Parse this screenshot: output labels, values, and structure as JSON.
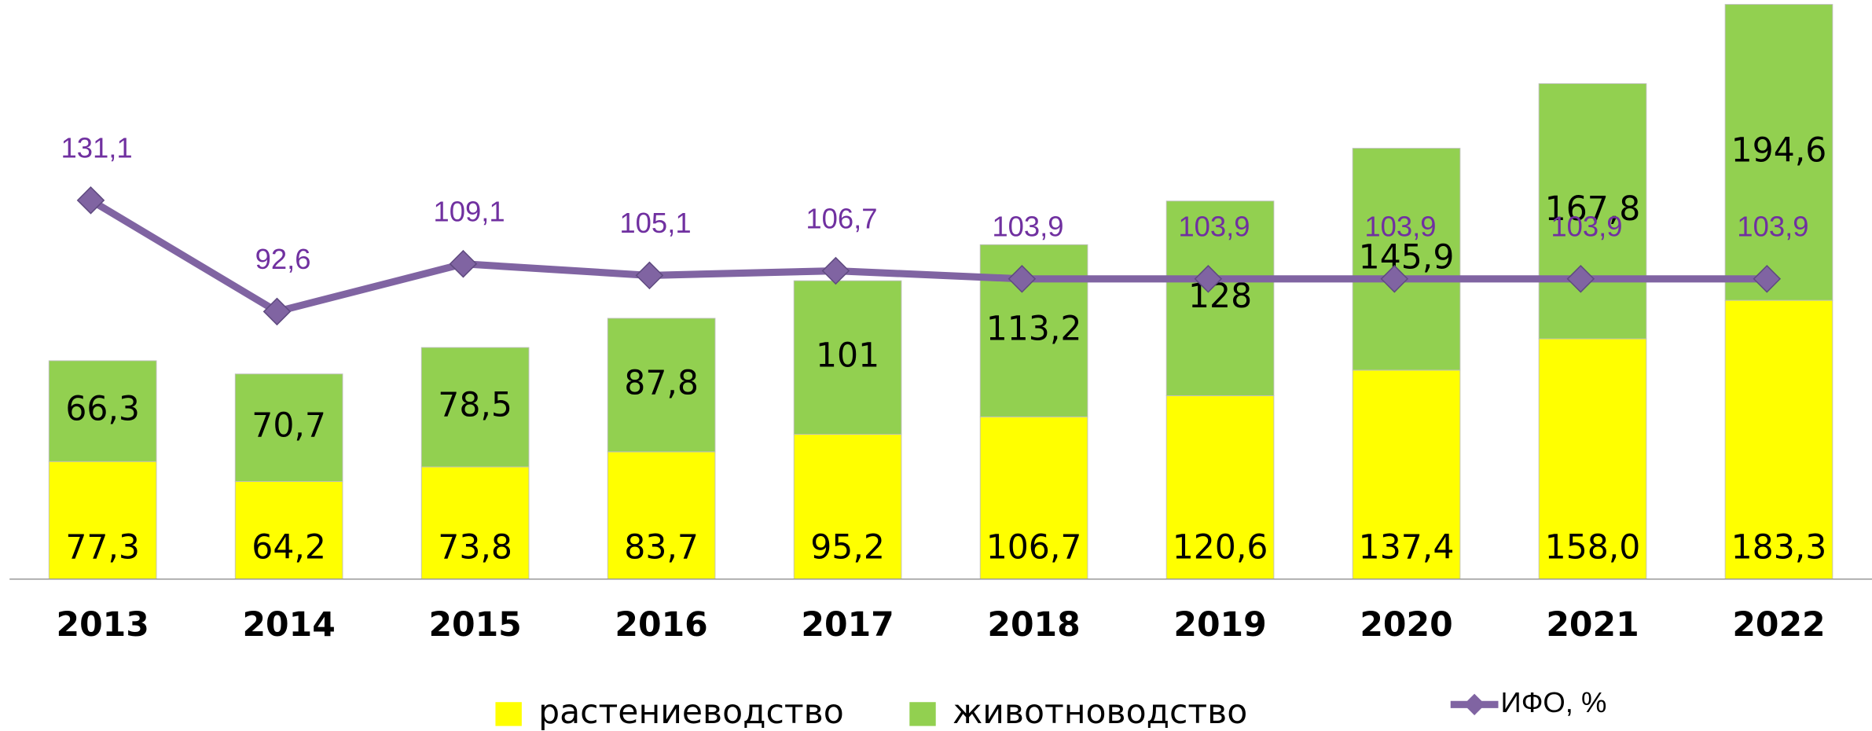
{
  "chart_data": {
    "type": "bar",
    "categories": [
      "2013",
      "2014",
      "2015",
      "2016",
      "2017",
      "2018",
      "2019",
      "2020",
      "2021",
      "2022"
    ],
    "stacked": true,
    "ylim": [
      0,
      380
    ],
    "y2lim": [
      0,
      200
    ],
    "series": [
      {
        "name": "растениеводство",
        "color": "#ffff00",
        "values": [
          77.3,
          64.2,
          73.8,
          83.7,
          95.2,
          106.7,
          120.6,
          137.4,
          158.0,
          183.3
        ],
        "value_labels": [
          "77,3",
          "64,2",
          "73,8",
          "83,7",
          "95,2",
          "106,7",
          "120,6",
          "137,4",
          "158,0",
          "183,3"
        ]
      },
      {
        "name": "животноводство",
        "color": "#92d050",
        "values": [
          66.3,
          70.7,
          78.5,
          87.8,
          101,
          113.2,
          128,
          145.9,
          167.8,
          194.6
        ],
        "value_labels": [
          "66,3",
          "70,7",
          "78,5",
          "87,8",
          "101",
          "113,2",
          "128",
          "145,9",
          "167,8",
          "194,6"
        ]
      },
      {
        "name": "ИФО, %",
        "type": "line",
        "axis": "y2",
        "color": "#8064a2",
        "label_color": "#7030a0",
        "values": [
          131.1,
          92.6,
          109.1,
          105.1,
          106.7,
          103.9,
          103.9,
          103.9,
          103.9,
          103.9
        ],
        "value_labels": [
          "131,1",
          "92,6",
          "109,1",
          "105,1",
          "106,7",
          "103,9",
          "103,9",
          "103,9",
          "103,9",
          "103,9"
        ]
      }
    ]
  }
}
